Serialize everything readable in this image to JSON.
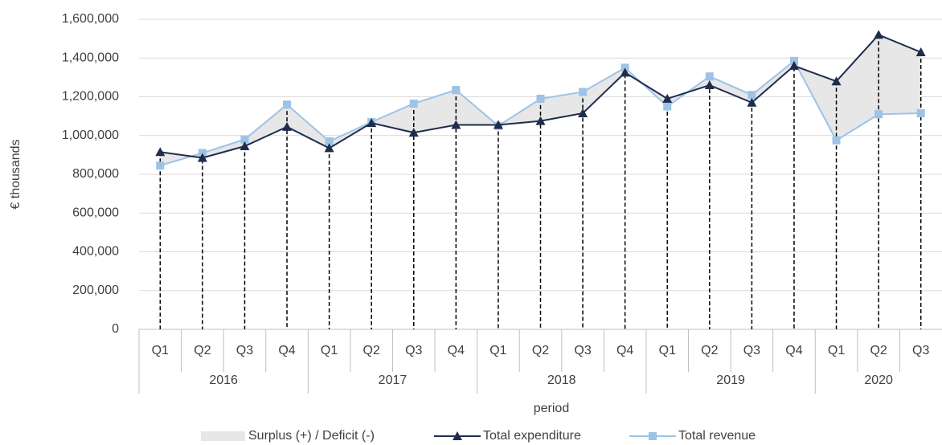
{
  "chart_data": {
    "type": "line",
    "y_axis_label": "€ thousands",
    "x_axis_label": "period",
    "categories": [
      "Q1",
      "Q2",
      "Q3",
      "Q4",
      "Q1",
      "Q2",
      "Q3",
      "Q4",
      "Q1",
      "Q2",
      "Q3",
      "Q4",
      "Q1",
      "Q2",
      "Q3",
      "Q4",
      "Q1",
      "Q2",
      "Q3"
    ],
    "groups": [
      {
        "label": "2016",
        "count": 4
      },
      {
        "label": "2017",
        "count": 4
      },
      {
        "label": "2018",
        "count": 4
      },
      {
        "label": "2019",
        "count": 4
      },
      {
        "label": "2020",
        "count": 3
      }
    ],
    "fill_between": {
      "name": "Surplus (+) / Deficit (-)",
      "color": "#e7e7e7"
    },
    "series": [
      {
        "name": "Total expenditure",
        "color": "#1f2d4d",
        "marker": "triangle",
        "values": [
          915000,
          885000,
          945000,
          1045000,
          935000,
          1065000,
          1015000,
          1055000,
          1055000,
          1075000,
          1115000,
          1325000,
          1190000,
          1260000,
          1170000,
          1360000,
          1280000,
          1520000,
          1430000
        ]
      },
      {
        "name": "Total revenue",
        "color": "#9dc3e6",
        "marker": "square",
        "values": [
          845000,
          910000,
          980000,
          1160000,
          970000,
          1070000,
          1165000,
          1235000,
          1050000,
          1190000,
          1225000,
          1350000,
          1150000,
          1305000,
          1210000,
          1385000,
          975000,
          1110000,
          1115000
        ]
      }
    ],
    "ylim": [
      0,
      1600000
    ],
    "yticks": [
      0,
      {
        "value": 200000,
        "label": "200,000"
      },
      {
        "value": 400000,
        "label": "400,000"
      },
      {
        "value": 600000,
        "label": "600,000"
      },
      {
        "value": 800000,
        "label": "800,000"
      },
      {
        "value": 1000000,
        "label": "1,000,000"
      },
      {
        "value": 1200000,
        "label": "1,200,000"
      },
      {
        "value": 1400000,
        "label": "1,400,000"
      },
      {
        "value": 1600000,
        "label": "1,600,000"
      }
    ],
    "grid": true,
    "legend": "bottom"
  }
}
